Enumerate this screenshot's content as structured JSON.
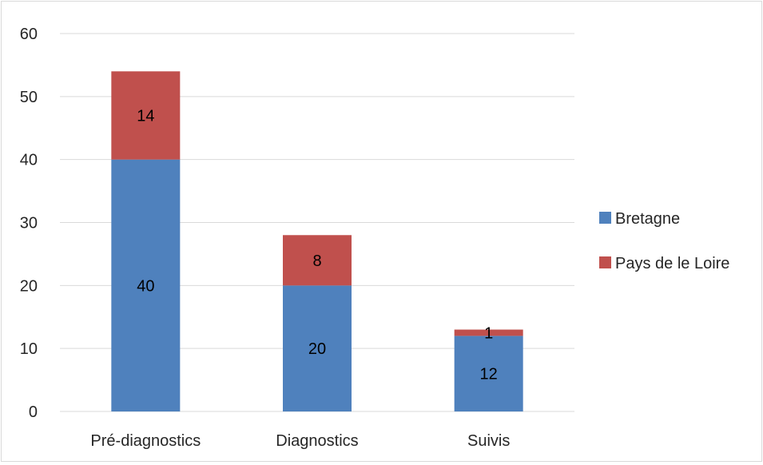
{
  "chart_data": {
    "type": "bar",
    "stacked": true,
    "title": "",
    "xlabel": "",
    "ylabel": "",
    "categories": [
      "Pré-diagnostics",
      "Diagnostics",
      "Suivis"
    ],
    "series": [
      {
        "name": "Bretagne",
        "values": [
          40,
          20,
          12
        ],
        "labels": [
          "40",
          "20",
          "12"
        ],
        "color": "#4f81bd"
      },
      {
        "name": "Pays de le Loire",
        "values": [
          14,
          8,
          1
        ],
        "labels": [
          "14",
          "8",
          "1"
        ],
        "color": "#c0504d"
      }
    ],
    "ylim": [
      0,
      60
    ],
    "yticks": [
      "0",
      "10",
      "20",
      "30",
      "40",
      "50",
      "60"
    ],
    "grid": true,
    "legend_position": "right"
  },
  "colors": {
    "gridline": "#d9d9d9",
    "axis_text": "#262626"
  }
}
